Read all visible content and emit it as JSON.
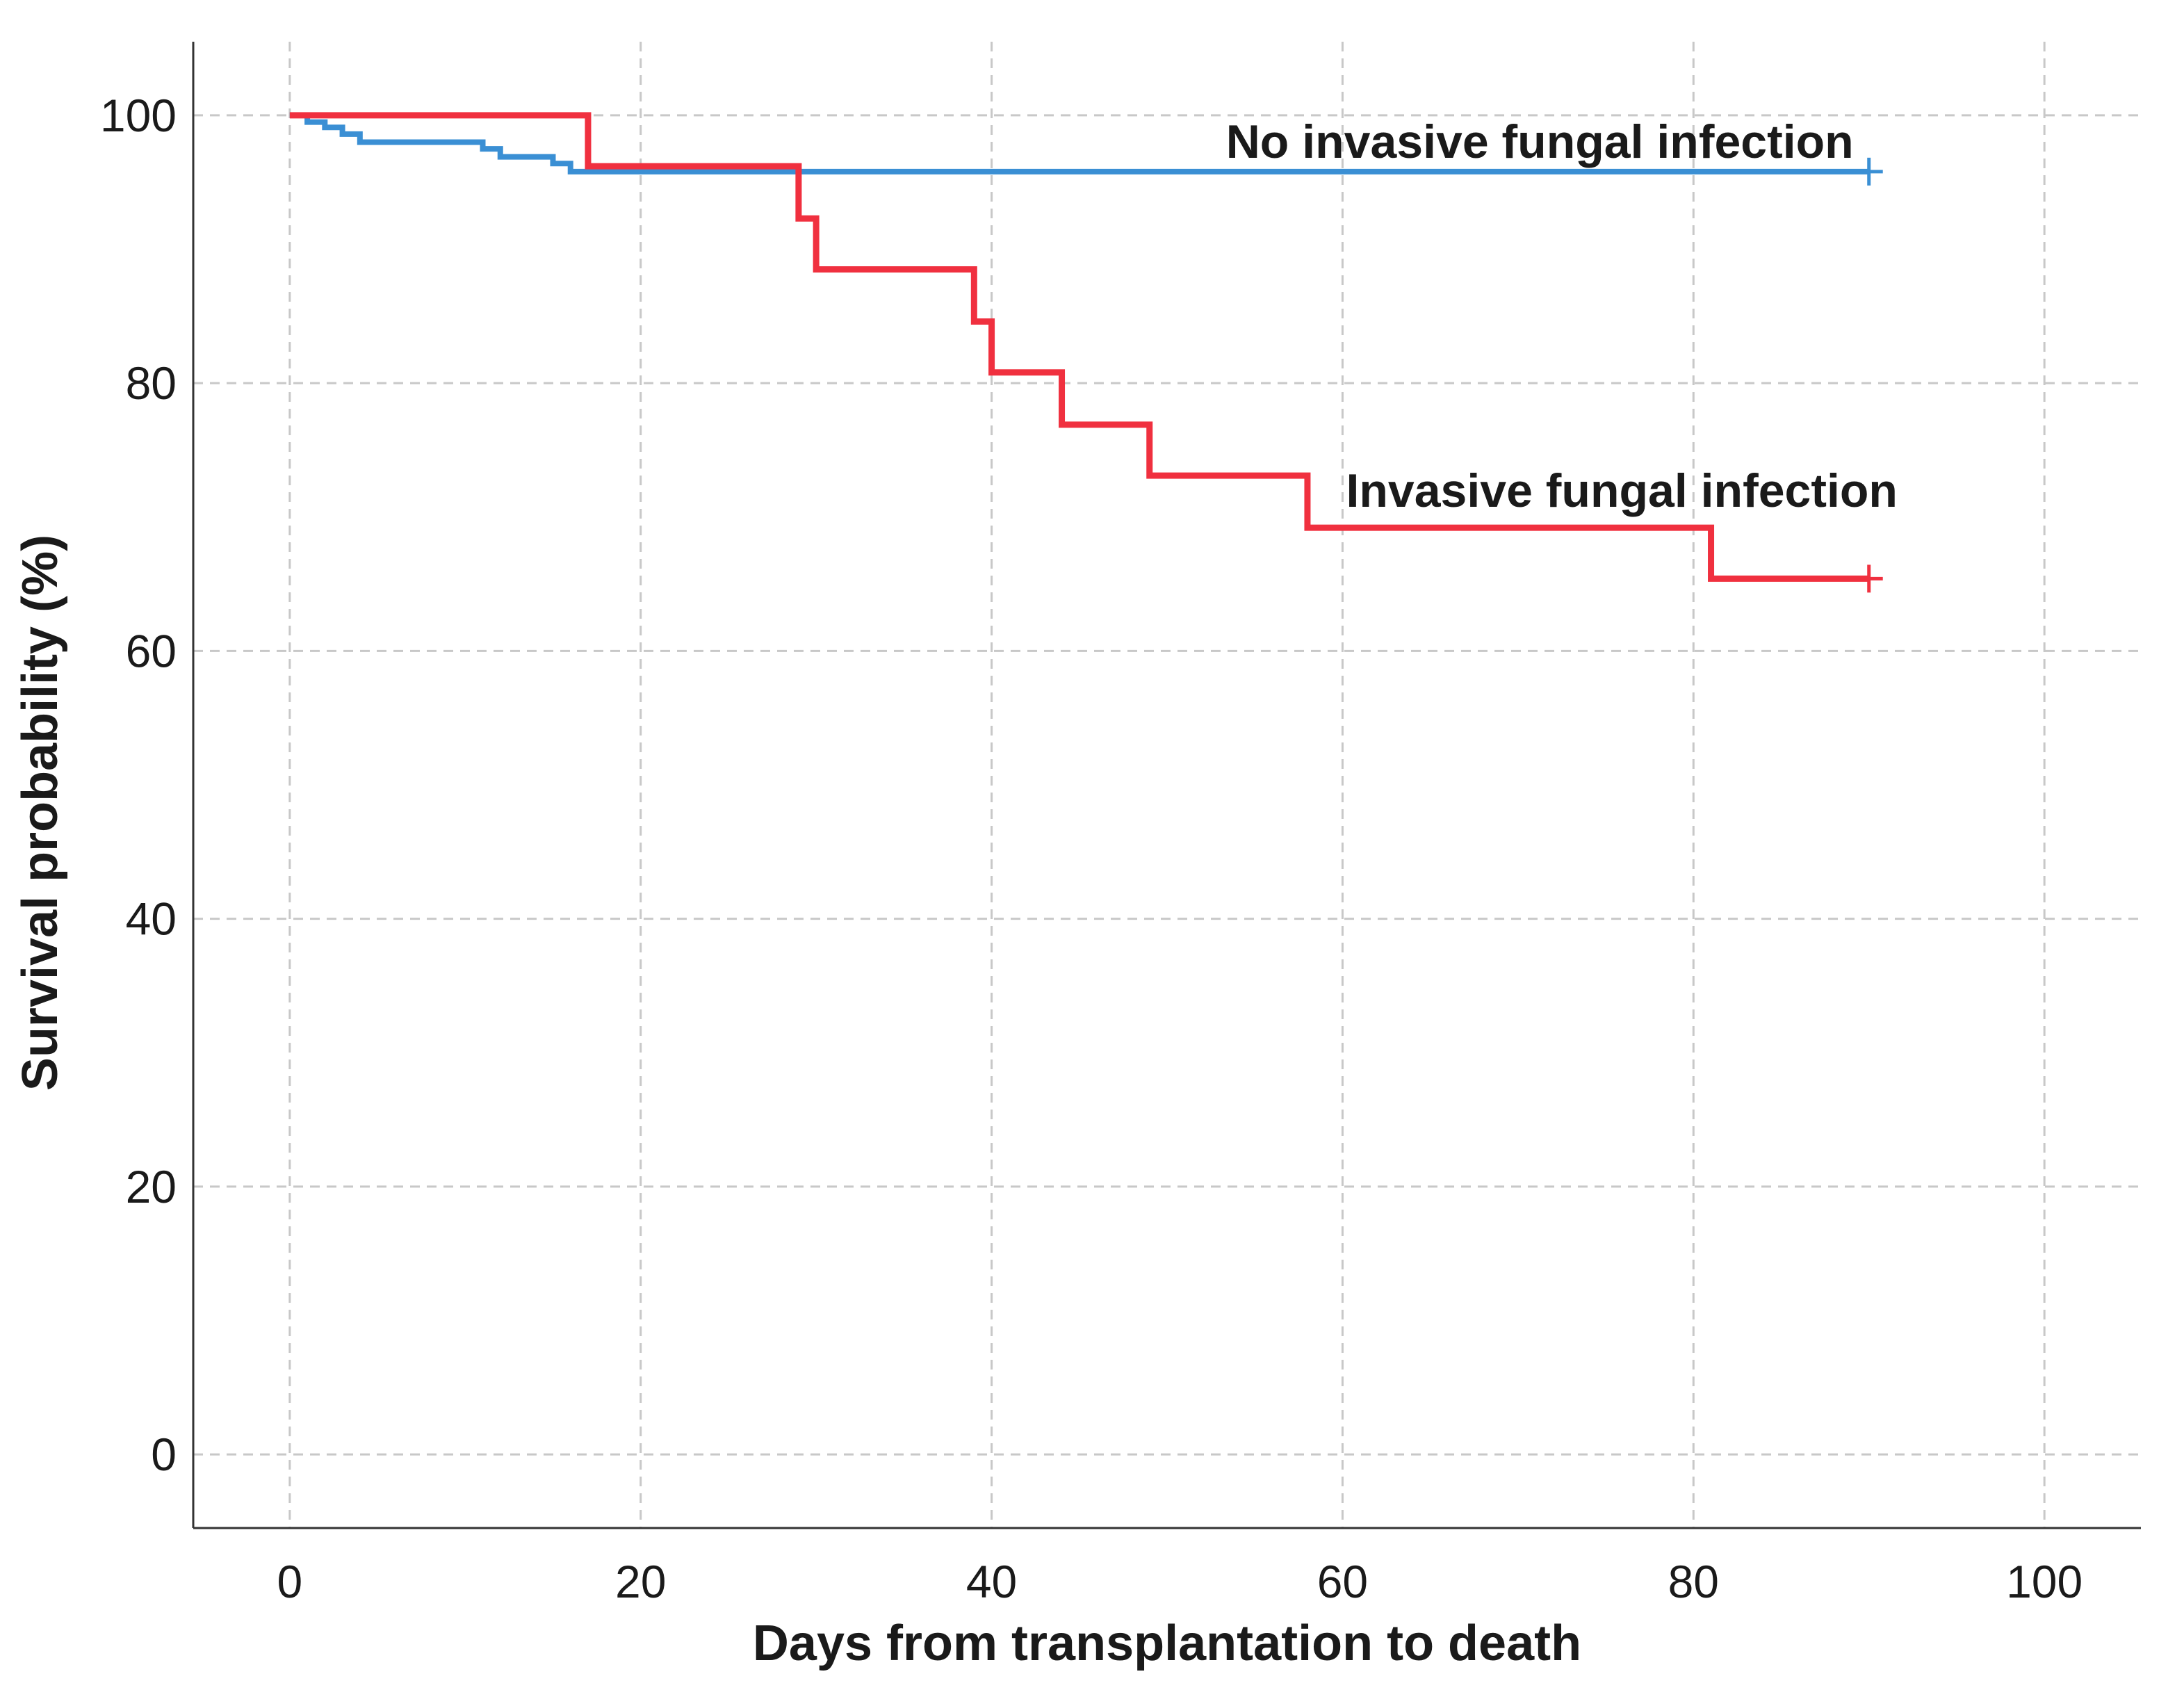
{
  "chart_data": {
    "type": "line",
    "title": "",
    "xlabel": "Days from transplantation to death",
    "ylabel": "Survival probability (%)",
    "xlim": [
      -5.5,
      105.5
    ],
    "ylim": [
      -5.5,
      105.5
    ],
    "x_ticks": [
      0,
      20,
      40,
      60,
      80,
      100
    ],
    "y_ticks": [
      0,
      20,
      40,
      60,
      80,
      100
    ],
    "x_tick_labels": [
      "0",
      "20",
      "40",
      "60",
      "80",
      "100"
    ],
    "y_tick_labels": [
      "0",
      "20",
      "40",
      "60",
      "80",
      "100"
    ],
    "grid": true,
    "legend": "none (series labelled directly on the plot)",
    "series": [
      {
        "name": "No invasive fungal infection",
        "color": "#3a8fd4",
        "step": "post",
        "censored_at": [
          90
        ],
        "x": [
          0,
          1,
          2,
          3,
          4,
          11,
          12,
          15,
          16,
          90
        ],
        "y": [
          100,
          99.5,
          99.1,
          98.6,
          98.0,
          97.5,
          96.9,
          96.4,
          95.8,
          95.8
        ]
      },
      {
        "name": "Invasive fungal infection",
        "color": "#f0303f",
        "step": "post",
        "censored_at": [
          90
        ],
        "x": [
          0,
          17,
          29,
          30,
          39,
          40,
          44,
          49,
          58,
          81,
          90
        ],
        "y": [
          100,
          96.2,
          92.3,
          88.5,
          84.6,
          80.8,
          76.9,
          73.1,
          69.2,
          65.4,
          65.4
        ]
      }
    ]
  }
}
